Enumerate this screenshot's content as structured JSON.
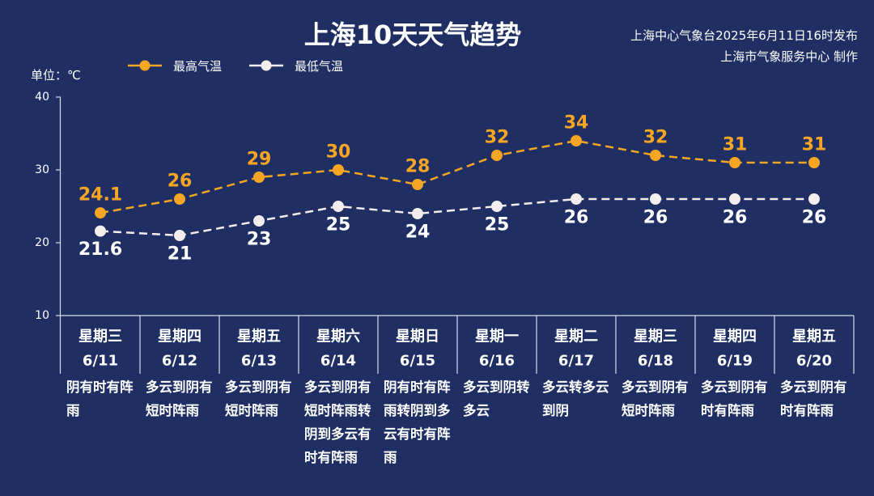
{
  "theme": {
    "background": "#1f2f63",
    "text": "#ffffff",
    "axis": "#d9dde8"
  },
  "header": {
    "publish_line": "上海中心气象台2025年6月11日16时发布",
    "producer_line": "上海市气象服务中心 制作"
  },
  "chart_data": {
    "type": "line",
    "title": "上海10天天气趋势",
    "unit_label": "单位：℃",
    "ylim": [
      10,
      40
    ],
    "yticks": [
      10,
      20,
      30,
      40
    ],
    "grid": false,
    "legend_position": "top-left",
    "categories": [
      "6/11",
      "6/12",
      "6/13",
      "6/14",
      "6/15",
      "6/16",
      "6/17",
      "6/18",
      "6/19",
      "6/20"
    ],
    "weekdays": [
      "星期三",
      "星期四",
      "星期五",
      "星期六",
      "星期日",
      "星期一",
      "星期二",
      "星期三",
      "星期四",
      "星期五"
    ],
    "weather": [
      "阴有时有阵雨",
      "多云到阴有短时阵雨",
      "多云到阴有短时阵雨",
      "多云到阴有短时阵雨转阴到多云有时有阵雨",
      "阴有时有阵雨转阴到多云有时有阵雨",
      "多云到阴转多云",
      "多云转多云到阴",
      "多云到阴有短时阵雨",
      "多云到阴有时有阵雨",
      "多云到阴有时有阵雨"
    ],
    "series": [
      {
        "name": "最高气温",
        "values": [
          24.1,
          26,
          29,
          30,
          28,
          32,
          34,
          32,
          31,
          31
        ],
        "color": "#f6a623",
        "line_style": "dashed"
      },
      {
        "name": "最低气温",
        "values": [
          21.6,
          21,
          23,
          25,
          24,
          25,
          26,
          26,
          26,
          26
        ],
        "color": "#f4eded",
        "line_style": "dashed"
      }
    ]
  }
}
